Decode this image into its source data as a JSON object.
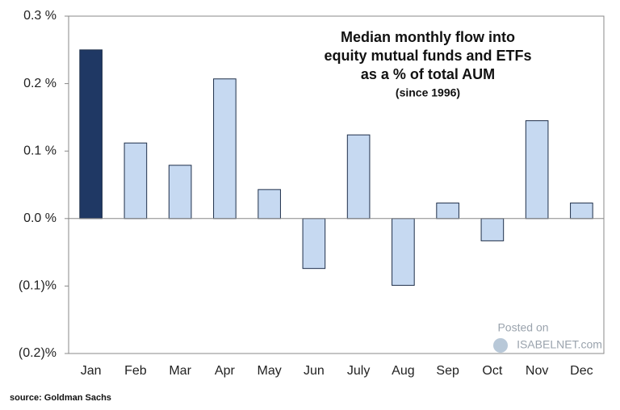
{
  "chart_data": {
    "type": "bar",
    "title_lines": [
      "Median monthly flow into",
      "equity mutual funds and ETFs",
      "as a % of total AUM"
    ],
    "subtitle": "(since 1996)",
    "source": "source: Goldman Sachs",
    "watermark": [
      "Posted on",
      "ISABELNET.com"
    ],
    "categories": [
      "Jan",
      "Feb",
      "Mar",
      "Apr",
      "May",
      "Jun",
      "July",
      "Aug",
      "Sep",
      "Oct",
      "Nov",
      "Dec"
    ],
    "values": [
      0.25,
      0.112,
      0.079,
      0.207,
      0.043,
      -0.074,
      0.124,
      -0.099,
      0.023,
      -0.033,
      0.145,
      0.023
    ],
    "colors": [
      "#1f3864",
      "#c6d9f1",
      "#c6d9f1",
      "#c6d9f1",
      "#c6d9f1",
      "#c6d9f1",
      "#c6d9f1",
      "#c6d9f1",
      "#c6d9f1",
      "#c6d9f1",
      "#c6d9f1",
      "#c6d9f1"
    ],
    "ylim": [
      -0.2,
      0.3
    ],
    "yticks": [
      {
        "value": -0.2,
        "label": "(0.2)%"
      },
      {
        "value": -0.1,
        "label": "(0.1)%"
      },
      {
        "value": 0,
        "label": "0.0 %"
      },
      {
        "value": 0.1,
        "label": "0.1 %"
      },
      {
        "value": 0.2,
        "label": "0.2 %"
      },
      {
        "value": 0.3,
        "label": "0.3 %"
      }
    ],
    "grid": false
  }
}
